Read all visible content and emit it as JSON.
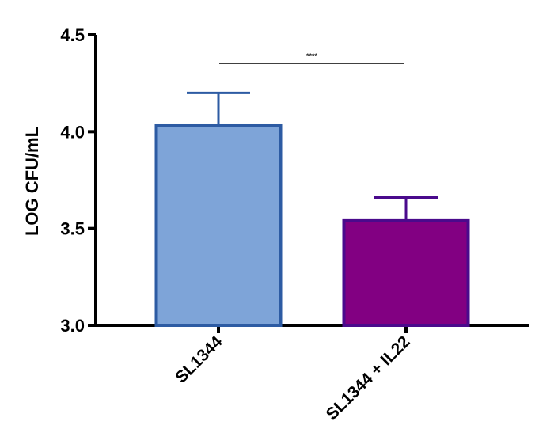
{
  "chart_data": {
    "type": "bar",
    "title": "",
    "xlabel": "",
    "ylabel": "LOG CFU/mL",
    "ylim": [
      3.0,
      4.5
    ],
    "yticks": [
      "3.0",
      "3.5",
      "4.0",
      "4.5"
    ],
    "categories": [
      "SL1344",
      "SL1344 + IL22"
    ],
    "values": [
      4.03,
      3.54
    ],
    "error_upper": [
      4.2,
      3.66
    ],
    "bar_fill_colors": [
      "#7ea4d8",
      "#820082"
    ],
    "bar_edge_colors": [
      "#2d5ba3",
      "#4a0a8c"
    ],
    "grid": false,
    "significance": {
      "label": "****",
      "between": [
        0,
        1
      ]
    }
  }
}
